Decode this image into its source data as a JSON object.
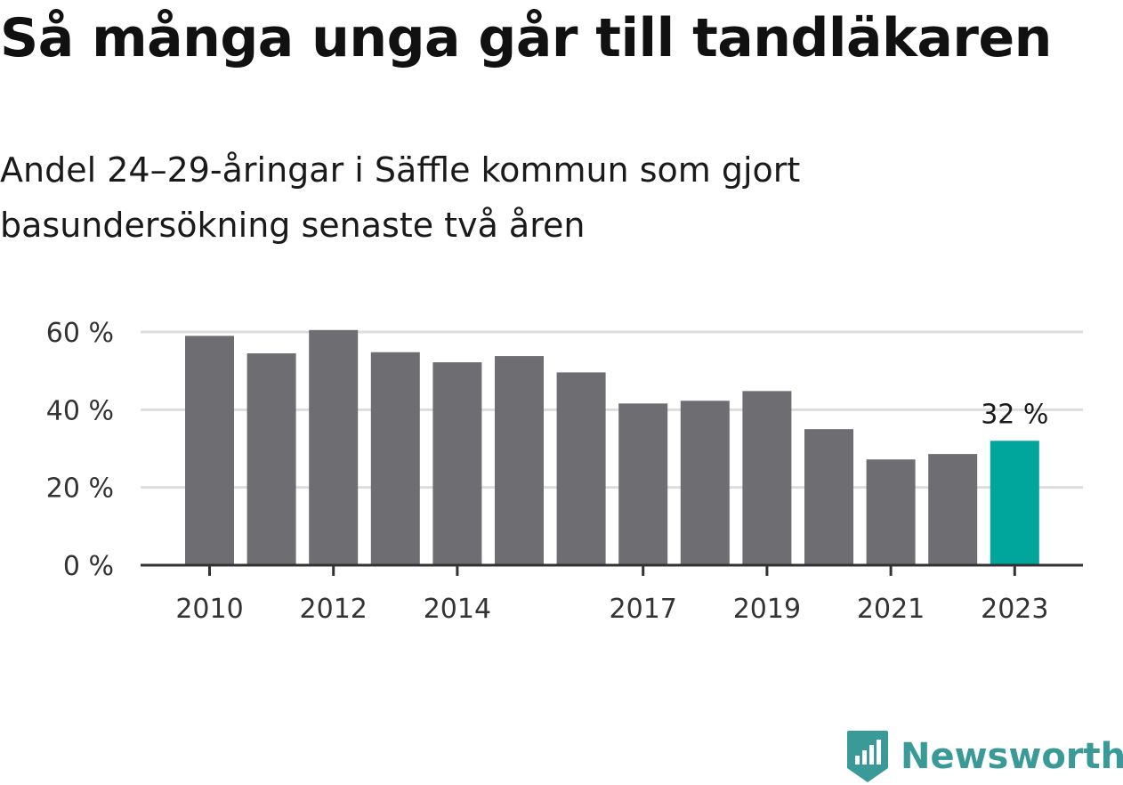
{
  "title": "Så många unga går till tandläkaren",
  "subtitle": "Andel 24–29-åringar i Säffle kommun som gjort basundersökning senaste två åren",
  "colors": {
    "bar": "#6e6d72",
    "highlight": "#00a59b",
    "grid": "#dddddd",
    "axis": "#333333",
    "brand": "#3a9a97"
  },
  "chart_data": {
    "type": "bar",
    "x": [
      2010,
      2011,
      2012,
      2013,
      2014,
      2015,
      2016,
      2017,
      2018,
      2019,
      2020,
      2021,
      2022,
      2023
    ],
    "values": [
      59,
      54.5,
      60.5,
      54.8,
      52.2,
      53.8,
      49.6,
      41.6,
      42.3,
      44.8,
      35,
      27.2,
      28.6,
      32
    ],
    "xtick_labels": [
      "2010",
      "2012",
      "2014",
      "2017",
      "2019",
      "2021",
      "2023"
    ],
    "ytick_values": [
      0,
      20,
      40,
      60
    ],
    "ytick_labels": [
      "0 %",
      "20 %",
      "40 %",
      "60 %"
    ],
    "ylim": [
      0,
      60
    ],
    "highlight_category": 2023,
    "data_labels": [
      {
        "x": 2023,
        "text": "32 %"
      }
    ],
    "grid": true,
    "legend": "none"
  },
  "brand": {
    "name": "Newsworthy",
    "logo_icon": "newsworthy-chart-logo-icon"
  }
}
